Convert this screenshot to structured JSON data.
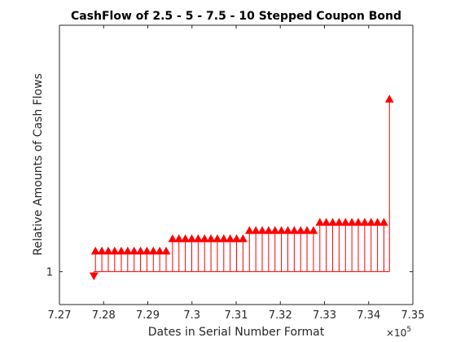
{
  "chart_data": {
    "type": "stem",
    "title": "CashFlow of 2.5 - 5 - 7.5 - 10 Stepped Coupon Bond",
    "xlabel": "Dates in Serial Number Format",
    "ylabel": "Relative Amounts of Cash Flows",
    "x_exponent": {
      "base": "×10",
      "power": "5"
    },
    "xlim": [
      727000,
      735000
    ],
    "ylim": [
      0.8,
      2.5
    ],
    "x_ticks": [
      727000,
      728000,
      729000,
      730000,
      731000,
      732000,
      733000,
      734000,
      735000
    ],
    "x_tick_labels": [
      "7.27",
      "7.28",
      "7.29",
      "7.3",
      "7.31",
      "7.32",
      "7.33",
      "7.34",
      "7.35"
    ],
    "y_ticks": [
      1
    ],
    "y_tick_labels": [
      "1"
    ],
    "baseline": 1,
    "grid": false,
    "color": "#ff0000",
    "x": [
      727780,
      727815,
      727960,
      728105,
      728250,
      728400,
      728545,
      728690,
      728835,
      728980,
      729125,
      729270,
      729415,
      729560,
      729705,
      729850,
      729995,
      730140,
      730285,
      730430,
      730575,
      730720,
      730865,
      731010,
      731155,
      731300,
      731445,
      731590,
      731735,
      731880,
      732025,
      732170,
      732315,
      732460,
      732605,
      732750,
      732895,
      733040,
      733185,
      733330,
      733475,
      733620,
      733765,
      733910,
      734055,
      734200,
      734345,
      734470
    ],
    "y": [
      0.975,
      1.125,
      1.125,
      1.125,
      1.125,
      1.125,
      1.125,
      1.125,
      1.125,
      1.125,
      1.125,
      1.125,
      1.125,
      1.2,
      1.2,
      1.2,
      1.2,
      1.2,
      1.2,
      1.2,
      1.2,
      1.2,
      1.2,
      1.2,
      1.2,
      1.25,
      1.25,
      1.25,
      1.25,
      1.25,
      1.25,
      1.25,
      1.25,
      1.25,
      1.25,
      1.25,
      1.3,
      1.3,
      1.3,
      1.3,
      1.3,
      1.3,
      1.3,
      1.3,
      1.3,
      1.3,
      1.3,
      2.05
    ]
  }
}
